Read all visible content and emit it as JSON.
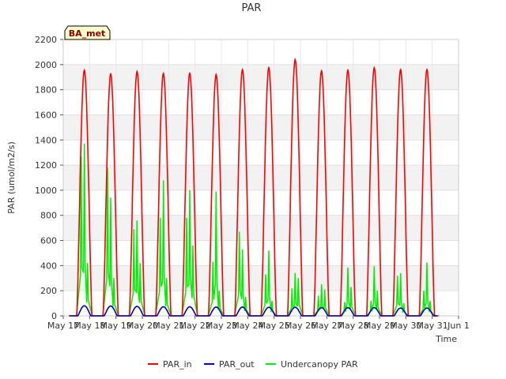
{
  "chart_data": {
    "type": "line",
    "title": "PAR",
    "xlabel": "Time",
    "ylabel": "PAR (umol/m2/s)",
    "ylim": [
      0,
      2200
    ],
    "xlim": [
      0,
      15
    ],
    "yticks": [
      0,
      200,
      400,
      600,
      800,
      1000,
      1200,
      1400,
      1600,
      1800,
      2000,
      2200
    ],
    "xtick_labels": [
      "May 17",
      "May 18",
      "May 19",
      "May 20",
      "May 21",
      "May 22",
      "May 23",
      "May 24",
      "May 25",
      "May 26",
      "May 27",
      "May 28",
      "May 29",
      "May 30",
      "May 31",
      "Jun 1"
    ],
    "station_label": "BA_met",
    "legend_position": "bottom-center",
    "grid": true,
    "series": [
      {
        "name": "PAR_in",
        "color": "#ff0000",
        "kind": "daily_peaks",
        "peak_day": [
          0.8,
          1.8,
          2.8,
          3.8,
          4.8,
          5.8,
          6.8,
          7.8,
          8.8,
          9.8,
          10.8,
          11.8,
          12.8,
          13.8
        ],
        "peak_values": [
          1955,
          1925,
          1945,
          1930,
          1930,
          1920,
          1960,
          1975,
          2040,
          1950,
          1955,
          1975,
          1960,
          1960
        ]
      },
      {
        "name": "PAR_out",
        "color": "#0000cc",
        "kind": "daily_peaks",
        "peak_day": [
          0.8,
          1.8,
          2.8,
          3.8,
          4.8,
          5.8,
          6.8,
          7.8,
          8.8,
          9.8,
          10.8,
          11.8,
          12.8,
          13.8
        ],
        "peak_values": [
          80,
          78,
          75,
          72,
          72,
          70,
          70,
          68,
          68,
          65,
          65,
          65,
          62,
          62
        ]
      },
      {
        "name": "Undercanopy PAR",
        "color": "#00ee00",
        "kind": "spikes",
        "peak_day": [
          0.8,
          1.8,
          2.8,
          3.8,
          4.8,
          5.8,
          6.8,
          7.8,
          8.8,
          9.8,
          10.8,
          11.8,
          12.8,
          13.8
        ],
        "spike_values": [
          [
            1270,
            1370,
            420
          ],
          [
            1180,
            940,
            300
          ],
          [
            690,
            760,
            420
          ],
          [
            780,
            1080,
            300
          ],
          [
            780,
            1000,
            560
          ],
          [
            430,
            990,
            200
          ],
          [
            670,
            530,
            150
          ],
          [
            330,
            520,
            120
          ],
          [
            220,
            340,
            300
          ],
          [
            160,
            250,
            210
          ],
          [
            110,
            385,
            230
          ],
          [
            120,
            395,
            200
          ],
          [
            320,
            340,
            100
          ],
          [
            200,
            425,
            120
          ]
        ]
      }
    ]
  }
}
